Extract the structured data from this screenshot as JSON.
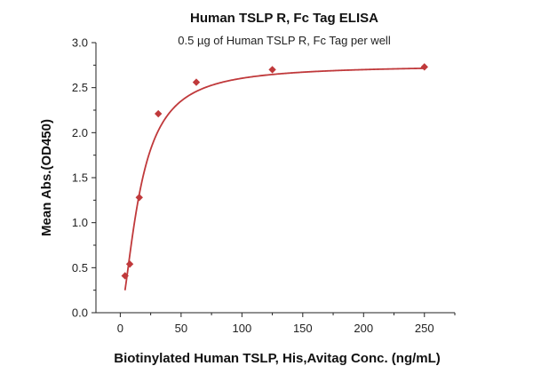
{
  "chart_data": {
    "type": "scatter",
    "title": "Human TSLP R, Fc Tag ELISA",
    "subtitle": "0.5 µg of Human TSLP R, Fc Tag per well",
    "xlabel": "Biotinylated Human TSLP, His,Avitag Conc. (ng/mL)",
    "ylabel": "Mean Abs.(OD450)",
    "xlim": [
      -20,
      275
    ],
    "ylim": [
      0,
      3.0
    ],
    "x_ticks": [
      0,
      50,
      100,
      150,
      200,
      250
    ],
    "y_ticks": [
      0.0,
      0.5,
      1.0,
      1.5,
      2.0,
      2.5,
      3.0
    ],
    "x_tick_labels": [
      "0",
      "50",
      "100",
      "150",
      "200",
      "250"
    ],
    "y_tick_labels": [
      "0.0",
      "0.5",
      "1.0",
      "1.5",
      "2.0",
      "2.5",
      "3.0"
    ],
    "grid": false,
    "series": [
      {
        "marker": "diamond",
        "color": "#c0393b",
        "points": [
          {
            "x": 3.9,
            "y": 0.41
          },
          {
            "x": 7.8,
            "y": 0.54
          },
          {
            "x": 15.6,
            "y": 1.28
          },
          {
            "x": 31.25,
            "y": 2.21
          },
          {
            "x": 62.5,
            "y": 2.56
          },
          {
            "x": 125,
            "y": 2.7
          },
          {
            "x": 250,
            "y": 2.73
          }
        ]
      }
    ],
    "fit_curve": {
      "color": "#c0393b",
      "model": "4PL",
      "bottom": 0.0,
      "top": 2.75,
      "ec50": 16.5,
      "hill": 1.6
    }
  }
}
